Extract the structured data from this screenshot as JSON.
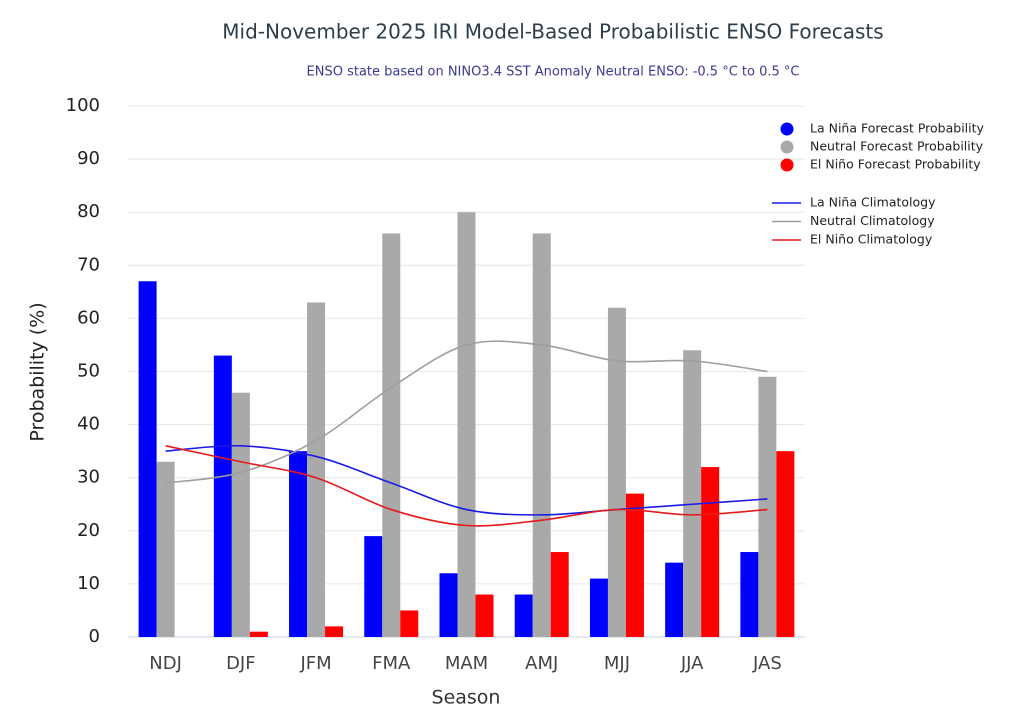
{
  "chart_data": {
    "type": "bar",
    "title": "Mid-November 2025 IRI Model-Based Probabilistic ENSO Forecasts",
    "subtitle": "ENSO state based on NINO3.4 SST Anomaly Neutral ENSO: -0.5 °C to 0.5 °C",
    "x_label": "Season",
    "y_label": "Probability (%)",
    "categories": [
      "NDJ",
      "DJF",
      "JFM",
      "FMA",
      "MAM",
      "AMJ",
      "MJJ",
      "JJA",
      "JAS"
    ],
    "ylim": [
      0,
      100
    ],
    "yticks": [
      0,
      10,
      20,
      30,
      40,
      50,
      60,
      70,
      80,
      90,
      100
    ],
    "grid": true,
    "series": [
      {
        "name": "La Niña Forecast Probability",
        "type": "bar",
        "color": "#0000ff",
        "values": [
          67,
          53,
          35,
          19,
          12,
          8,
          11,
          14,
          16
        ]
      },
      {
        "name": "Neutral Forecast Probability",
        "type": "bar",
        "color": "#a9a9a9",
        "values": [
          33,
          46,
          63,
          76,
          80,
          76,
          62,
          54,
          49
        ]
      },
      {
        "name": "El Niño Forecast Probability",
        "type": "bar",
        "color": "#ff0000",
        "values": [
          0,
          1,
          2,
          5,
          8,
          16,
          27,
          32,
          35
        ]
      },
      {
        "name": "La Niña Climatology",
        "type": "line",
        "color": "#1a1ae6",
        "values": [
          35,
          36,
          34,
          29,
          24,
          23,
          24,
          25,
          26
        ]
      },
      {
        "name": "Neutral Climatology",
        "type": "line",
        "color": "#9e9e9e",
        "values": [
          29,
          31,
          37,
          47,
          55,
          55,
          52,
          52,
          50
        ]
      },
      {
        "name": "El Niño Climatology",
        "type": "line",
        "color": "#e61a1a",
        "values": [
          36,
          33,
          30,
          24,
          21,
          22,
          24,
          23,
          24
        ]
      }
    ]
  }
}
